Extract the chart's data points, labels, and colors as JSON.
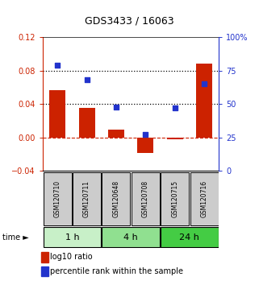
{
  "title": "GDS3433 / 16063",
  "samples": [
    "GSM120710",
    "GSM120711",
    "GSM120648",
    "GSM120708",
    "GSM120715",
    "GSM120716"
  ],
  "log10_ratio": [
    0.057,
    0.035,
    0.009,
    -0.018,
    -0.002,
    0.088
  ],
  "percentile_rank": [
    79,
    68,
    48,
    27,
    47,
    65
  ],
  "time_groups": [
    {
      "label": "1 h",
      "indices": [
        0,
        1
      ],
      "color": "#c8f0c8"
    },
    {
      "label": "4 h",
      "indices": [
        2,
        3
      ],
      "color": "#90e090"
    },
    {
      "label": "24 h",
      "indices": [
        4,
        5
      ],
      "color": "#44cc44"
    }
  ],
  "bar_color": "#cc2200",
  "dot_color": "#2233cc",
  "ylim_left": [
    -0.04,
    0.12
  ],
  "ylim_right": [
    0,
    100
  ],
  "yticks_left": [
    -0.04,
    0.0,
    0.04,
    0.08,
    0.12
  ],
  "yticks_right": [
    0,
    25,
    50,
    75,
    100
  ],
  "hlines": [
    0.08,
    0.04
  ],
  "background_color": "#ffffff",
  "sample_box_color": "#cccccc",
  "bar_width": 0.55,
  "dot_size": 22
}
